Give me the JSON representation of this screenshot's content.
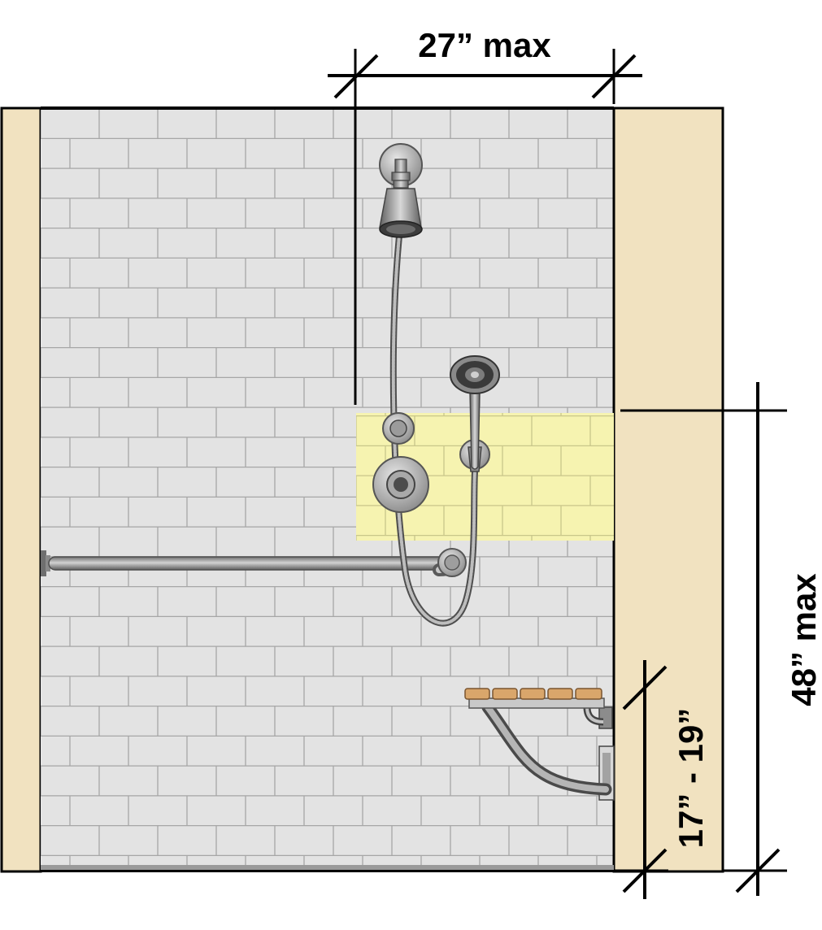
{
  "dimensions": {
    "control_reach_width": "27” max",
    "control_height": "48” max",
    "seat_height": "17” - 19”"
  },
  "colors": {
    "wall_tan": "#f1e2c0",
    "tile_face": "#e3e3e3",
    "tile_grout": "#a6a6a6",
    "control_zone": "#f6f3b0",
    "control_zone_grout": "#c9c68a",
    "metal": "#8f8f8f",
    "seat_slat": "#d9a66b"
  },
  "icons": {
    "shower_head": "fixed-shower-head-icon",
    "hand_shower": "hand-held-shower-icon",
    "valve": "shower-valve-icon",
    "diverter": "diverter-icon",
    "grab_bar": "grab-bar-icon",
    "seat": "folding-seat-icon"
  }
}
